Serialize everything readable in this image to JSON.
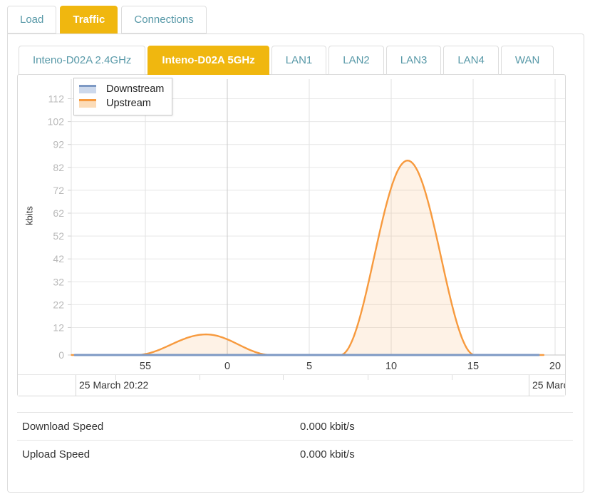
{
  "colors": {
    "accent_gold": "#f0b70f",
    "tab_teal": "#5899a8",
    "downstream_blue": "#7d99c4",
    "upstream_orange": "#f79a3e"
  },
  "main_tabs": {
    "items": [
      {
        "label": "Load",
        "active": false
      },
      {
        "label": "Traffic",
        "active": true
      },
      {
        "label": "Connections",
        "active": false
      }
    ]
  },
  "device_tabs": {
    "items": [
      {
        "label": "Inteno-D02A 2.4GHz",
        "active": false
      },
      {
        "label": "Inteno-D02A 5GHz",
        "active": true
      },
      {
        "label": "LAN1",
        "active": false
      },
      {
        "label": "LAN2",
        "active": false
      },
      {
        "label": "LAN3",
        "active": false
      },
      {
        "label": "LAN4",
        "active": false
      },
      {
        "label": "WAN",
        "active": false
      }
    ]
  },
  "chart_data": {
    "type": "area",
    "title": "",
    "xlabel": "",
    "ylabel": "kbits",
    "grid": true,
    "legend_position": "top-left",
    "ylim": [
      0,
      120
    ],
    "y_ticks": [
      0,
      12,
      22,
      32,
      42,
      52,
      62,
      72,
      82,
      92,
      102,
      112
    ],
    "x_ticks": [
      {
        "label": "55",
        "min": -5
      },
      {
        "label": "0",
        "min": 0
      },
      {
        "label": "5",
        "min": 5
      },
      {
        "label": "10",
        "min": 10
      },
      {
        "label": "15",
        "min": 15
      },
      {
        "label": "20",
        "min": 20
      }
    ],
    "x_range_minutes": [
      -9.5,
      20.6
    ],
    "legend": [
      {
        "label": "Downstream",
        "line": "#7d99c4",
        "fill": "#cdd9ec"
      },
      {
        "label": "Upstream",
        "line": "#f79a3e",
        "fill": "#fcdcb8"
      }
    ],
    "series": [
      {
        "name": "Downstream",
        "type": "flat-line",
        "color": "#7d99c4",
        "value": 0,
        "x_start": -9.3,
        "x_end": 19.0
      },
      {
        "name": "Upstream",
        "type": "area",
        "color": "#f79a3e",
        "fill": "rgba(247,154,62,0.13)",
        "x_start": -9.5,
        "x_end": 19.3,
        "humps": [
          {
            "start": -5.6,
            "peak": -1.3,
            "end": 2.7,
            "height": 9
          },
          {
            "start": 6.9,
            "peak": 11.0,
            "end": 15.1,
            "height": 85
          }
        ]
      }
    ],
    "x_axis_dates": {
      "left": "25 March 20:22",
      "right": "25 Marc"
    }
  },
  "stats": {
    "rows": [
      {
        "label": "Download Speed",
        "value": "0.000 kbit/s"
      },
      {
        "label": "Upload Speed",
        "value": "0.000 kbit/s"
      }
    ]
  }
}
